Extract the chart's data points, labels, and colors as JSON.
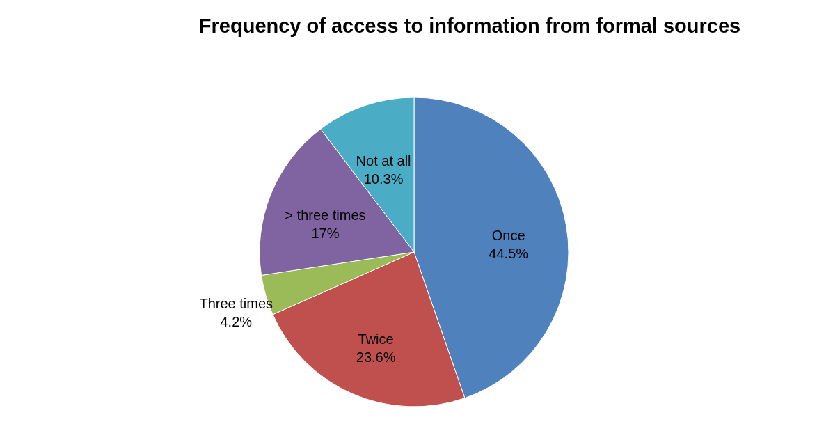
{
  "chart_data": {
    "type": "pie",
    "title": "Frequency of access to information from formal sources",
    "categories": [
      "Once",
      "Twice",
      "Three times",
      "> three times",
      "Not at all"
    ],
    "values": [
      44.5,
      23.6,
      4.2,
      17,
      10.3
    ],
    "value_labels": [
      "44.5%",
      "23.6%",
      "4.2%",
      "17%",
      "10.3%"
    ],
    "colors": [
      "#4f81bd",
      "#c0504d",
      "#9bbb59",
      "#8064a2",
      "#4bacc6"
    ]
  }
}
